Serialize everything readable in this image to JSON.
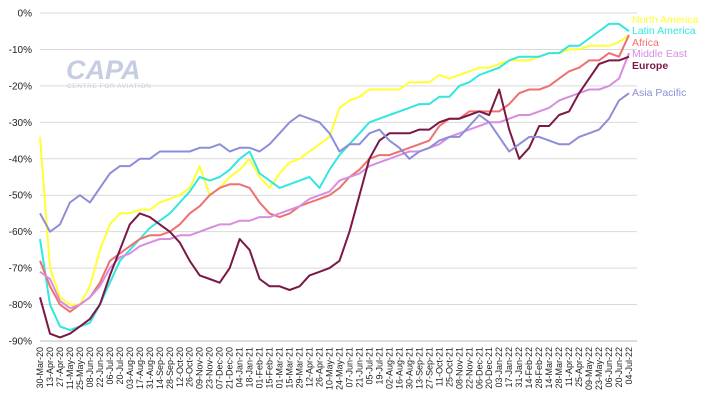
{
  "watermark": {
    "brand": "CAPA",
    "tagline": "CENTRE FOR AVIATION"
  },
  "chart_data": {
    "type": "line",
    "title": "",
    "xlabel": "",
    "ylabel": "",
    "ylim": [
      -90,
      0
    ],
    "y_ticks": [
      "0%",
      "-10%",
      "-20%",
      "-30%",
      "-40%",
      "-50%",
      "-60%",
      "-70%",
      "-80%",
      "-90%"
    ],
    "x": [
      "30-Mar-20",
      "13-Apr-20",
      "27-Apr-20",
      "11-May-20",
      "25-May-20",
      "08-Jun-20",
      "22-Jun-20",
      "06-Jul-20",
      "20-Jul-20",
      "03-Aug-20",
      "17-Aug-20",
      "31-Aug-20",
      "14-Sep-20",
      "28-Sep-20",
      "12-Oct-20",
      "26-Oct-20",
      "09-Nov-20",
      "23-Nov-20",
      "07-Dec-20",
      "21-Dec-20",
      "04-Jan-21",
      "18-Jan-21",
      "01-Feb-21",
      "15-Feb-21",
      "01-Mar-21",
      "15-Mar-21",
      "29-Mar-21",
      "12-Apr-21",
      "26-Apr-21",
      "10-May-21",
      "24-May-21",
      "07-Jun-21",
      "21-Jun-21",
      "05-Jul-21",
      "19-Jul-21",
      "02-Aug-21",
      "16-Aug-21",
      "30-Aug-21",
      "13-Sep-21",
      "27-Sep-21",
      "11-Oct-21",
      "25-Oct-21",
      "08-Nov-21",
      "22-Nov-21",
      "06-Dec-21",
      "20-Dec-21",
      "03-Jan-22",
      "17-Jan-22",
      "31-Jan-22",
      "14-Feb-22",
      "28-Feb-22",
      "14-Mar-22",
      "28-Mar-22",
      "11-Apr-22",
      "25-Apr-22",
      "09-May-22",
      "23-May-22",
      "06-Jun-22",
      "20-Jun-22",
      "04-Jul-22"
    ],
    "x_tick_labels": [
      "30-Mar-20",
      "13-Apr-20",
      "27-Apr-20",
      "11-May-20",
      "25-May-20",
      "08-Jun-20",
      "22-Jun-20",
      "06-Jul-20",
      "20-Jul-20",
      "03-Aug-20",
      "17-Aug-20",
      "31-Aug-20",
      "14-Sep-20",
      "28-Sep-20",
      "12-Oct-20",
      "26-Oct-20",
      "09-Nov-20",
      "23-Nov-20",
      "07-Dec-20",
      "21-Dec-20",
      "04-Jan-21",
      "18-Jan-21",
      "01-Feb-21",
      "15-Feb-21",
      "01-Mar-21",
      "15-Mar-21",
      "29-Mar-21",
      "12-Apr-21",
      "26-Apr-21",
      "10-May-21",
      "24-May-21",
      "07-Jun-21",
      "21-Jun-21",
      "05-Jul-21",
      "19-Jul-21",
      "02-Aug-21",
      "16-Aug-21",
      "30-Aug-21",
      "13-Sep-21",
      "27-Sep-21",
      "11-Oct-21",
      "25-Oct-21",
      "08-Nov-21",
      "22-Nov-21",
      "06-Dec-21",
      "20-Dec-21",
      "03-Jan-22",
      "17-Jan-22",
      "31-Jan-22",
      "14-Feb-22",
      "28-Feb-22",
      "14-Mar-22",
      "28-Mar-22",
      "11-Apr-22",
      "25-Apr-22",
      "09-May-22",
      "23-May-22",
      "06-Jun-22",
      "20-Jun-22",
      "04-Jul-22"
    ],
    "grid": "horizontal",
    "legend": "right, inline labels",
    "series": [
      {
        "name": "North America",
        "color": "#ffff33",
        "values": [
          -34,
          -70,
          -78,
          -80,
          -80,
          -75,
          -65,
          -58,
          -55,
          -55,
          -54,
          -54,
          -52,
          -51,
          -50,
          -48,
          -42,
          -50,
          -48,
          -45,
          -43,
          -40,
          -45,
          -48,
          -44,
          -41,
          -40,
          -38,
          -36,
          -34,
          -26,
          -24,
          -23,
          -21,
          -21,
          -21,
          -21,
          -19,
          -19,
          -19,
          -17,
          -18,
          -17,
          -16,
          -15,
          -15,
          -14,
          -13,
          -13,
          -13,
          -12,
          -11,
          -11,
          -10,
          -10,
          -9,
          -9,
          -9,
          -8,
          -6
        ]
      },
      {
        "name": "Latin America",
        "color": "#33e6e0",
        "values": [
          -62,
          -80,
          -86,
          -87,
          -86,
          -85,
          -80,
          -74,
          -68,
          -65,
          -62,
          -59,
          -57,
          -55,
          -52,
          -49,
          -45,
          -46,
          -45,
          -43,
          -40,
          -38,
          -44,
          -46,
          -48,
          -47,
          -46,
          -45,
          -48,
          -43,
          -39,
          -36,
          -33,
          -30,
          -29,
          -28,
          -27,
          -26,
          -25,
          -25,
          -23,
          -23,
          -20,
          -19,
          -17,
          -16,
          -15,
          -13,
          -12,
          -12,
          -12,
          -11,
          -11,
          -9,
          -9,
          -7,
          -5,
          -3,
          -3,
          -5
        ]
      },
      {
        "name": "Africa",
        "color": "#f07070",
        "values": [
          -68,
          -75,
          -80,
          -82,
          -80,
          -78,
          -74,
          -68,
          -66,
          -64,
          -62,
          -61,
          -61,
          -60,
          -58,
          -55,
          -53,
          -50,
          -48,
          -47,
          -47,
          -48,
          -52,
          -55,
          -56,
          -55,
          -53,
          -52,
          -51,
          -50,
          -48,
          -45,
          -43,
          -40,
          -39,
          -39,
          -38,
          -37,
          -36,
          -35,
          -31,
          -29,
          -29,
          -27,
          -27,
          -27,
          -27,
          -25,
          -22,
          -21,
          -21,
          -20,
          -18,
          -16,
          -15,
          -13,
          -13,
          -11,
          -12,
          -6
        ]
      },
      {
        "name": "Middle East",
        "color": "#d88ee0",
        "values": [
          -71,
          -73,
          -79,
          -81,
          -80,
          -78,
          -75,
          -70,
          -67,
          -66,
          -64,
          -63,
          -62,
          -62,
          -61,
          -61,
          -60,
          -59,
          -58,
          -58,
          -57,
          -57,
          -56,
          -56,
          -55,
          -54,
          -53,
          -51,
          -50,
          -49,
          -46,
          -45,
          -44,
          -42,
          -41,
          -40,
          -39,
          -38,
          -38,
          -37,
          -36,
          -34,
          -33,
          -32,
          -31,
          -30,
          -30,
          -29,
          -28,
          -28,
          -27,
          -26,
          -24,
          -23,
          -22,
          -21,
          -21,
          -20,
          -18,
          -11
        ]
      },
      {
        "name": "Europe",
        "color": "#7a1846",
        "values": [
          -78,
          -88,
          -89,
          -88,
          -86,
          -84,
          -80,
          -72,
          -65,
          -58,
          -55,
          -56,
          -58,
          -60,
          -63,
          -68,
          -72,
          -73,
          -74,
          -70,
          -62,
          -65,
          -73,
          -75,
          -75,
          -76,
          -75,
          -72,
          -71,
          -70,
          -68,
          -60,
          -50,
          -40,
          -35,
          -33,
          -33,
          -33,
          -32,
          -32,
          -30,
          -29,
          -29,
          -28,
          -27,
          -28,
          -21,
          -32,
          -40,
          -37,
          -31,
          -31,
          -28,
          -27,
          -22,
          -18,
          -14,
          -13,
          -13,
          -12
        ]
      },
      {
        "name": "Asia Pacific",
        "color": "#8e8ed8",
        "values": [
          -55,
          -60,
          -58,
          -52,
          -50,
          -52,
          -48,
          -44,
          -42,
          -42,
          -40,
          -40,
          -38,
          -38,
          -38,
          -38,
          -37,
          -37,
          -36,
          -38,
          -37,
          -37,
          -38,
          -36,
          -33,
          -30,
          -28,
          -29,
          -30,
          -33,
          -38,
          -36,
          -36,
          -33,
          -32,
          -35,
          -37,
          -40,
          -38,
          -37,
          -35,
          -34,
          -34,
          -31,
          -28,
          -30,
          -34,
          -38,
          -36,
          -34,
          -34,
          -35,
          -36,
          -36,
          -34,
          -33,
          -32,
          -29,
          -24,
          -22
        ]
      }
    ]
  }
}
